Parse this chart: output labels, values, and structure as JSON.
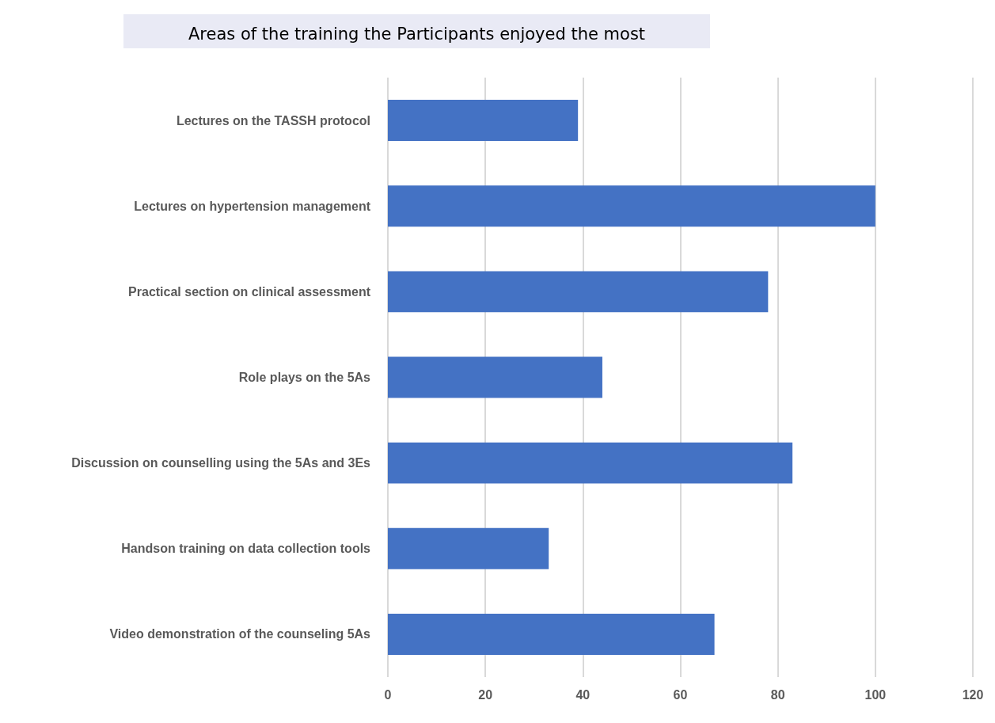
{
  "chart_data": {
    "type": "bar",
    "orientation": "horizontal",
    "title": "Areas of the training the Participants enjoyed the most",
    "categories": [
      "Lectures on the TASSH protocol",
      "Lectures on hypertension management",
      "Practical section on clinical assessment",
      "Role plays on the 5As",
      "Discussion on counselling using the 5As and 3Es",
      "Handson training on data collection tools",
      "Video demonstration of the counseling 5As"
    ],
    "values": [
      39,
      100,
      78,
      44,
      83,
      33,
      67
    ],
    "color": "#4472c4",
    "xlim": [
      0,
      120
    ],
    "xticks": [
      0,
      20,
      40,
      60,
      80,
      100,
      120
    ],
    "grid": "x"
  }
}
